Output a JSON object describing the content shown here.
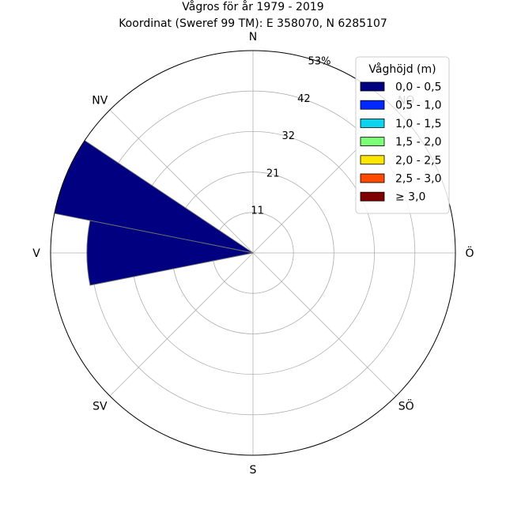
{
  "chart_data": {
    "type": "windrose",
    "title": "Vågros för år 1979 - 2019",
    "subtitle": "Koordinat (Sweref 99 TM): E 358070, N 6285107",
    "directions": [
      "N",
      "NO",
      "Ö",
      "SÖ",
      "S",
      "SV",
      "V",
      "NV"
    ],
    "compass_labels": [
      {
        "dir": "N",
        "angle_deg": 0
      },
      {
        "dir": "NO",
        "angle_deg": 45
      },
      {
        "dir": "Ö",
        "angle_deg": 90
      },
      {
        "dir": "SÖ",
        "angle_deg": 135
      },
      {
        "dir": "S",
        "angle_deg": 180
      },
      {
        "dir": "SV",
        "angle_deg": 225
      },
      {
        "dir": "V",
        "angle_deg": 270
      },
      {
        "dir": "NV",
        "angle_deg": 315
      }
    ],
    "radial_ticks": [
      "11",
      "21",
      "32",
      "42",
      "53%"
    ],
    "radial_tick_values": [
      10.6,
      21.2,
      31.8,
      42.4,
      53.0
    ],
    "radial_max": 53.0,
    "legend_title": "Våghöjd (m)",
    "legend_position": "top-right",
    "bins": [
      {
        "label": "0,0 - 0,5",
        "color": "#000080"
      },
      {
        "label": "0,5 - 1,0",
        "color": "#0028ff"
      },
      {
        "label": "1,0 - 1,5",
        "color": "#0dd4ee"
      },
      {
        "label": "1,5 - 2,0",
        "color": "#7dff7a"
      },
      {
        "label": "2,0 - 2,5",
        "color": "#ffe600"
      },
      {
        "label": "2,5 - 3,0",
        "color": "#ff4a00"
      },
      {
        "label": "≥ 3,0",
        "color": "#800000"
      }
    ],
    "sectors": [
      {
        "center_deg": 292.5,
        "width_deg": 22.5,
        "bin": 0,
        "value": 53.0
      },
      {
        "center_deg": 270.0,
        "width_deg": 22.5,
        "bin": 0,
        "value": 43.5
      }
    ],
    "grid": true
  }
}
